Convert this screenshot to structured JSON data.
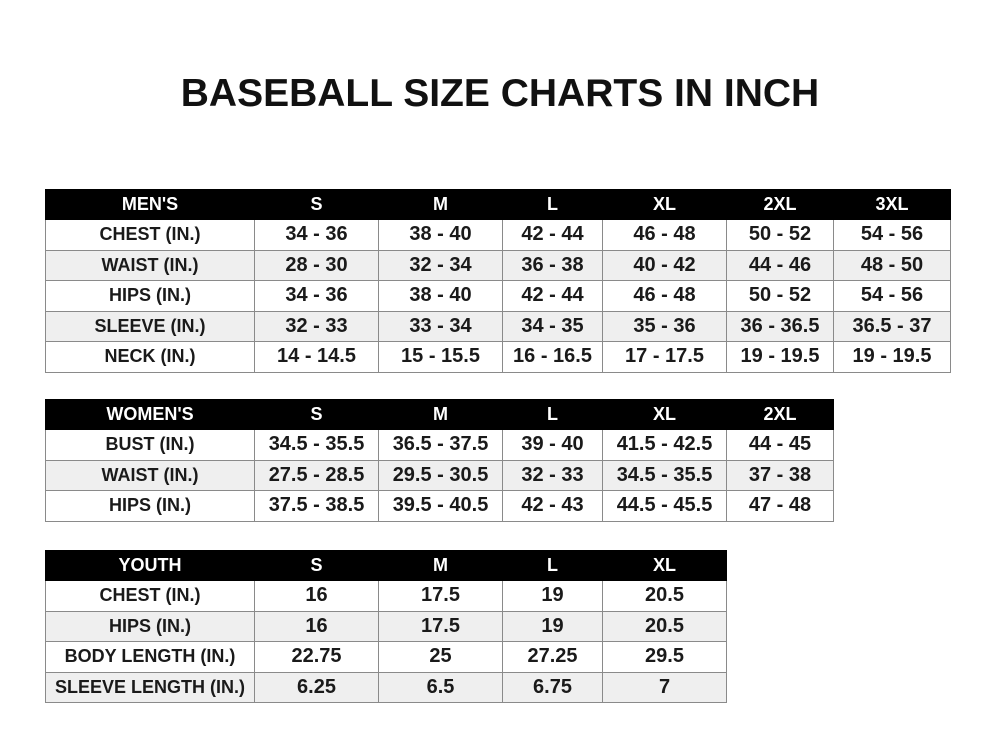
{
  "title": "BASEBALL SIZE CHARTS IN INCH",
  "men": {
    "header": [
      "MEN'S",
      "S",
      "M",
      "L",
      "XL",
      "2XL",
      "3XL"
    ],
    "rows": [
      [
        "CHEST (IN.)",
        "34 - 36",
        "38 - 40",
        "42 - 44",
        "46 - 48",
        "50 - 52",
        "54 - 56"
      ],
      [
        "WAIST (IN.)",
        "28 - 30",
        "32 - 34",
        "36 - 38",
        "40 - 42",
        "44 - 46",
        "48 - 50"
      ],
      [
        "HIPS (IN.)",
        "34 - 36",
        "38 - 40",
        "42 - 44",
        "46 - 48",
        "50 - 52",
        "54 - 56"
      ],
      [
        "SLEEVE (IN.)",
        "32 - 33",
        "33 - 34",
        "34 - 35",
        "35 - 36",
        "36 - 36.5",
        "36.5 - 37"
      ],
      [
        "NECK (IN.)",
        "14 - 14.5",
        "15 - 15.5",
        "16 - 16.5",
        "17 - 17.5",
        "19 - 19.5",
        "19 - 19.5"
      ]
    ]
  },
  "women": {
    "header": [
      "WOMEN'S",
      "S",
      "M",
      "L",
      "XL",
      "2XL"
    ],
    "rows": [
      [
        "BUST (IN.)",
        "34.5 - 35.5",
        "36.5 - 37.5",
        "39 - 40",
        "41.5 - 42.5",
        "44 - 45"
      ],
      [
        "WAIST (IN.)",
        "27.5 - 28.5",
        "29.5 - 30.5",
        "32 - 33",
        "34.5 - 35.5",
        "37 - 38"
      ],
      [
        "HIPS (IN.)",
        "37.5 - 38.5",
        "39.5 - 40.5",
        "42 - 43",
        "44.5 - 45.5",
        "47 - 48"
      ]
    ]
  },
  "youth": {
    "header": [
      "YOUTH",
      "S",
      "M",
      "L",
      "XL"
    ],
    "rows": [
      [
        "CHEST (IN.)",
        "16",
        "17.5",
        "19",
        "20.5"
      ],
      [
        "HIPS (IN.)",
        "16",
        "17.5",
        "19",
        "20.5"
      ],
      [
        "BODY LENGTH (IN.)",
        "22.75",
        "25",
        "27.25",
        "29.5"
      ],
      [
        "SLEEVE LENGTH (IN.)",
        "6.25",
        "6.5",
        "6.75",
        "7"
      ]
    ]
  },
  "colors": {
    "header_bg": "#000000",
    "header_text": "#ffffff",
    "alt_row": "#efefef"
  }
}
